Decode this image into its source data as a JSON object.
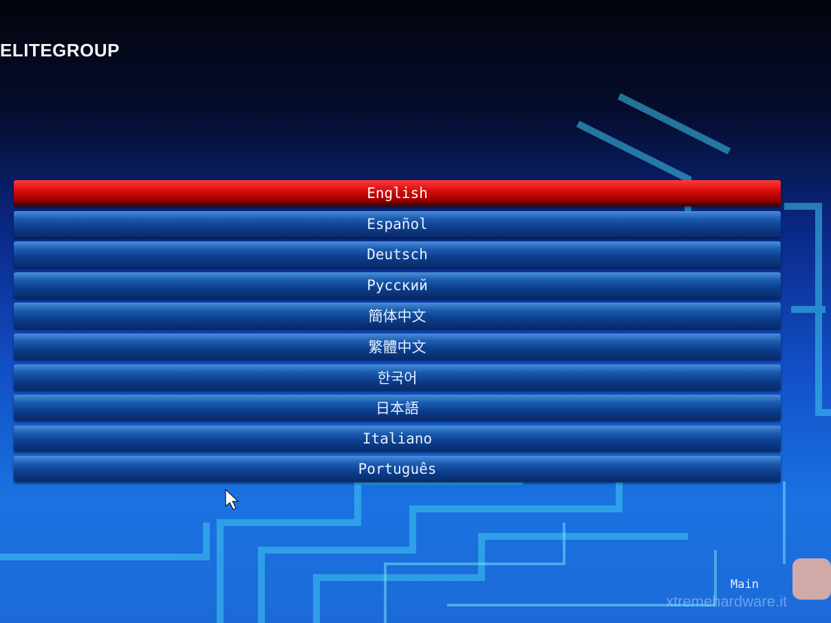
{
  "header": {
    "brand": "ELITEGROUP"
  },
  "languages": [
    "English",
    "Español",
    "Deutsch",
    "Русский",
    "簡体中文",
    "繁體中文",
    "한국어",
    "日本語",
    "Italiano",
    "Português"
  ],
  "footer": {
    "tab": "Main",
    "watermark": "xtremehardware.it"
  }
}
